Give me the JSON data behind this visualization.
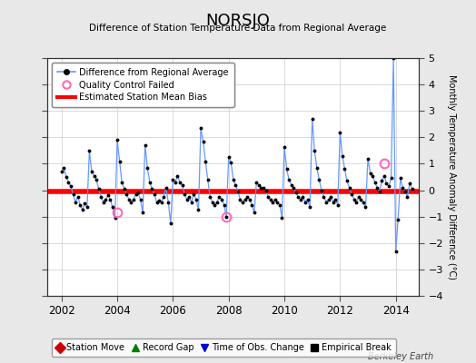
{
  "title": "NORSJO",
  "subtitle": "Difference of Station Temperature Data from Regional Average",
  "ylabel_right": "Monthly Temperature Anomaly Difference (°C)",
  "xlim": [
    2001.5,
    2014.83
  ],
  "ylim": [
    -4,
    5
  ],
  "yticks": [
    -4,
    -3,
    -2,
    -1,
    0,
    1,
    2,
    3,
    4,
    5
  ],
  "xticks": [
    2002,
    2004,
    2006,
    2008,
    2010,
    2012,
    2014
  ],
  "mean_bias": -0.05,
  "bias_color": "#ff0000",
  "bias_linewidth": 4.0,
  "line_color": "#6699ff",
  "dot_color": "#000000",
  "qc_color": "#ff69b4",
  "plot_bg_color": "#ffffff",
  "fig_bg_color": "#e8e8e8",
  "grid_color": "#cccccc",
  "watermark": "Berkeley Earth",
  "time_series": [
    [
      2002.0,
      0.7
    ],
    [
      2002.083,
      0.85
    ],
    [
      2002.167,
      0.5
    ],
    [
      2002.25,
      0.3
    ],
    [
      2002.333,
      0.15
    ],
    [
      2002.417,
      -0.15
    ],
    [
      2002.5,
      -0.45
    ],
    [
      2002.583,
      -0.25
    ],
    [
      2002.667,
      -0.55
    ],
    [
      2002.75,
      -0.75
    ],
    [
      2002.833,
      -0.5
    ],
    [
      2002.917,
      -0.65
    ],
    [
      2003.0,
      1.5
    ],
    [
      2003.083,
      0.7
    ],
    [
      2003.167,
      0.55
    ],
    [
      2003.25,
      0.4
    ],
    [
      2003.333,
      0.05
    ],
    [
      2003.417,
      -0.25
    ],
    [
      2003.5,
      -0.45
    ],
    [
      2003.583,
      -0.35
    ],
    [
      2003.667,
      -0.2
    ],
    [
      2003.75,
      -0.35
    ],
    [
      2003.833,
      -0.65
    ],
    [
      2003.917,
      -1.05
    ],
    [
      2004.0,
      1.9
    ],
    [
      2004.083,
      1.1
    ],
    [
      2004.167,
      0.3
    ],
    [
      2004.25,
      0.05
    ],
    [
      2004.333,
      -0.15
    ],
    [
      2004.417,
      -0.35
    ],
    [
      2004.5,
      -0.45
    ],
    [
      2004.583,
      -0.35
    ],
    [
      2004.667,
      -0.15
    ],
    [
      2004.75,
      -0.1
    ],
    [
      2004.833,
      -0.35
    ],
    [
      2004.917,
      -0.85
    ],
    [
      2005.0,
      1.7
    ],
    [
      2005.083,
      0.85
    ],
    [
      2005.167,
      0.3
    ],
    [
      2005.25,
      0.05
    ],
    [
      2005.333,
      -0.15
    ],
    [
      2005.417,
      -0.45
    ],
    [
      2005.5,
      -0.4
    ],
    [
      2005.583,
      -0.45
    ],
    [
      2005.667,
      -0.25
    ],
    [
      2005.75,
      0.1
    ],
    [
      2005.833,
      -0.45
    ],
    [
      2005.917,
      -1.25
    ],
    [
      2006.0,
      0.4
    ],
    [
      2006.083,
      0.3
    ],
    [
      2006.167,
      0.55
    ],
    [
      2006.25,
      0.3
    ],
    [
      2006.333,
      0.2
    ],
    [
      2006.417,
      -0.15
    ],
    [
      2006.5,
      -0.35
    ],
    [
      2006.583,
      -0.25
    ],
    [
      2006.667,
      -0.45
    ],
    [
      2006.75,
      -0.15
    ],
    [
      2006.833,
      -0.35
    ],
    [
      2006.917,
      -0.75
    ],
    [
      2007.0,
      2.35
    ],
    [
      2007.083,
      1.85
    ],
    [
      2007.167,
      1.1
    ],
    [
      2007.25,
      0.4
    ],
    [
      2007.333,
      -0.25
    ],
    [
      2007.417,
      -0.45
    ],
    [
      2007.5,
      -0.55
    ],
    [
      2007.583,
      -0.45
    ],
    [
      2007.667,
      -0.25
    ],
    [
      2007.75,
      -0.35
    ],
    [
      2007.833,
      -0.55
    ],
    [
      2007.917,
      -1.0
    ],
    [
      2008.0,
      1.25
    ],
    [
      2008.083,
      1.05
    ],
    [
      2008.167,
      0.4
    ],
    [
      2008.25,
      0.2
    ],
    [
      2008.333,
      -0.05
    ],
    [
      2008.417,
      -0.35
    ],
    [
      2008.5,
      -0.45
    ],
    [
      2008.583,
      -0.35
    ],
    [
      2008.667,
      -0.25
    ],
    [
      2008.75,
      -0.35
    ],
    [
      2008.833,
      -0.55
    ],
    [
      2008.917,
      -0.85
    ],
    [
      2009.0,
      0.3
    ],
    [
      2009.083,
      0.2
    ],
    [
      2009.167,
      0.1
    ],
    [
      2009.25,
      0.1
    ],
    [
      2009.333,
      0.0
    ],
    [
      2009.417,
      -0.25
    ],
    [
      2009.5,
      -0.35
    ],
    [
      2009.583,
      -0.45
    ],
    [
      2009.667,
      -0.35
    ],
    [
      2009.75,
      -0.45
    ],
    [
      2009.833,
      -0.55
    ],
    [
      2009.917,
      -1.05
    ],
    [
      2010.0,
      1.65
    ],
    [
      2010.083,
      0.8
    ],
    [
      2010.167,
      0.4
    ],
    [
      2010.25,
      0.2
    ],
    [
      2010.333,
      0.1
    ],
    [
      2010.417,
      -0.1
    ],
    [
      2010.5,
      -0.25
    ],
    [
      2010.583,
      -0.35
    ],
    [
      2010.667,
      -0.25
    ],
    [
      2010.75,
      -0.45
    ],
    [
      2010.833,
      -0.35
    ],
    [
      2010.917,
      -0.65
    ],
    [
      2011.0,
      2.7
    ],
    [
      2011.083,
      1.5
    ],
    [
      2011.167,
      0.85
    ],
    [
      2011.25,
      0.4
    ],
    [
      2011.333,
      0.0
    ],
    [
      2011.417,
      -0.25
    ],
    [
      2011.5,
      -0.45
    ],
    [
      2011.583,
      -0.35
    ],
    [
      2011.667,
      -0.25
    ],
    [
      2011.75,
      -0.45
    ],
    [
      2011.833,
      -0.35
    ],
    [
      2011.917,
      -0.55
    ],
    [
      2012.0,
      2.2
    ],
    [
      2012.083,
      1.3
    ],
    [
      2012.167,
      0.8
    ],
    [
      2012.25,
      0.35
    ],
    [
      2012.333,
      0.1
    ],
    [
      2012.417,
      -0.15
    ],
    [
      2012.5,
      -0.35
    ],
    [
      2012.583,
      -0.45
    ],
    [
      2012.667,
      -0.25
    ],
    [
      2012.75,
      -0.35
    ],
    [
      2012.833,
      -0.45
    ],
    [
      2012.917,
      -0.65
    ],
    [
      2013.0,
      1.2
    ],
    [
      2013.083,
      0.65
    ],
    [
      2013.167,
      0.55
    ],
    [
      2013.25,
      0.3
    ],
    [
      2013.333,
      0.1
    ],
    [
      2013.417,
      -0.05
    ],
    [
      2013.5,
      0.35
    ],
    [
      2013.583,
      0.55
    ],
    [
      2013.667,
      0.25
    ],
    [
      2013.75,
      0.15
    ],
    [
      2013.833,
      0.45
    ],
    [
      2013.917,
      5.0
    ],
    [
      2014.0,
      -2.3
    ],
    [
      2014.083,
      -1.1
    ],
    [
      2014.167,
      0.45
    ],
    [
      2014.25,
      0.1
    ],
    [
      2014.333,
      -0.05
    ],
    [
      2014.417,
      -0.25
    ],
    [
      2014.5,
      0.25
    ],
    [
      2014.583,
      0.05
    ]
  ],
  "qc_failed_points": [
    [
      2004.0,
      -0.85
    ],
    [
      2007.917,
      -1.0
    ],
    [
      2013.583,
      1.0
    ]
  ],
  "legend2_entries": [
    {
      "label": "Station Move",
      "color": "#cc0000",
      "marker": "D"
    },
    {
      "label": "Record Gap",
      "color": "#008000",
      "marker": "^"
    },
    {
      "label": "Time of Obs. Change",
      "color": "#0000cc",
      "marker": "v"
    },
    {
      "label": "Empirical Break",
      "color": "#000000",
      "marker": "s"
    }
  ]
}
